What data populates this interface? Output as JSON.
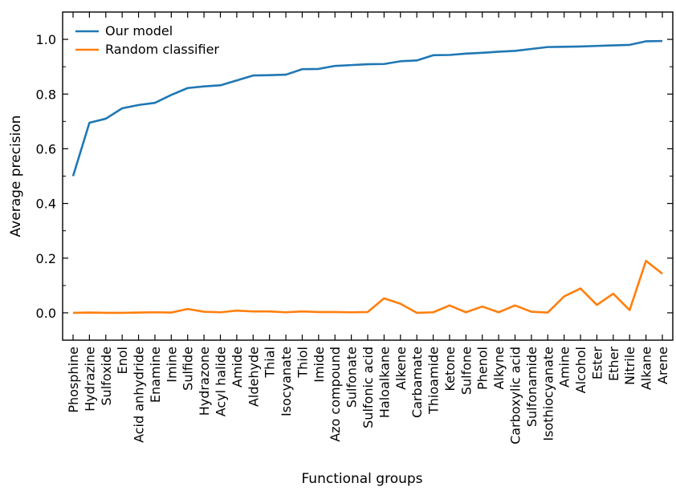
{
  "chart_data": {
    "type": "line",
    "xlabel": "Functional groups",
    "ylabel": "Average precision",
    "ylim": [
      -0.1,
      1.1
    ],
    "yticks": [
      "0.0",
      "0.2",
      "0.4",
      "0.6",
      "0.8",
      "1.0"
    ],
    "grid": false,
    "legend_position": "top-left",
    "categories": [
      "Phosphine",
      "Hydrazine",
      "Sulfoxide",
      "Enol",
      "Acid anhydride",
      "Enamine",
      "Imine",
      "Sulfide",
      "Hydrazone",
      "Acyl halide",
      "Amide",
      "Aldehyde",
      "Thial",
      "Isocyanate",
      "Thiol",
      "Imide",
      "Azo compound",
      "Sulfonate",
      "Sulfonic acid",
      "Haloalkane",
      "Alkene",
      "Carbamate",
      "Thioamide",
      "Ketone",
      "Sulfone",
      "Phenol",
      "Alkyne",
      "Carboxylic acid",
      "Sulfonamide",
      "Isothiocyanate",
      "Amine",
      "Alcohol",
      "Ester",
      "Ether",
      "Nitrile",
      "Alkane",
      "Arene"
    ],
    "series": [
      {
        "name": "Our model",
        "color": "#1f77b4",
        "values": [
          0.5,
          0.695,
          0.71,
          0.748,
          0.76,
          0.768,
          0.797,
          0.822,
          0.828,
          0.832,
          0.85,
          0.868,
          0.869,
          0.871,
          0.891,
          0.892,
          0.903,
          0.906,
          0.909,
          0.91,
          0.92,
          0.923,
          0.942,
          0.943,
          0.948,
          0.951,
          0.955,
          0.958,
          0.965,
          0.972,
          0.973,
          0.974,
          0.976,
          0.978,
          0.98,
          0.993,
          0.994
        ]
      },
      {
        "name": "Random classifier",
        "color": "#ff7f0e",
        "values": [
          0.0,
          0.001,
          0.0,
          0.0,
          0.001,
          0.002,
          0.001,
          0.014,
          0.004,
          0.002,
          0.008,
          0.005,
          0.005,
          0.002,
          0.005,
          0.003,
          0.003,
          0.002,
          0.003,
          0.053,
          0.033,
          0.0,
          0.002,
          0.027,
          0.002,
          0.023,
          0.002,
          0.027,
          0.004,
          0.001,
          0.06,
          0.089,
          0.029,
          0.07,
          0.01,
          0.19,
          0.143
        ]
      }
    ]
  }
}
